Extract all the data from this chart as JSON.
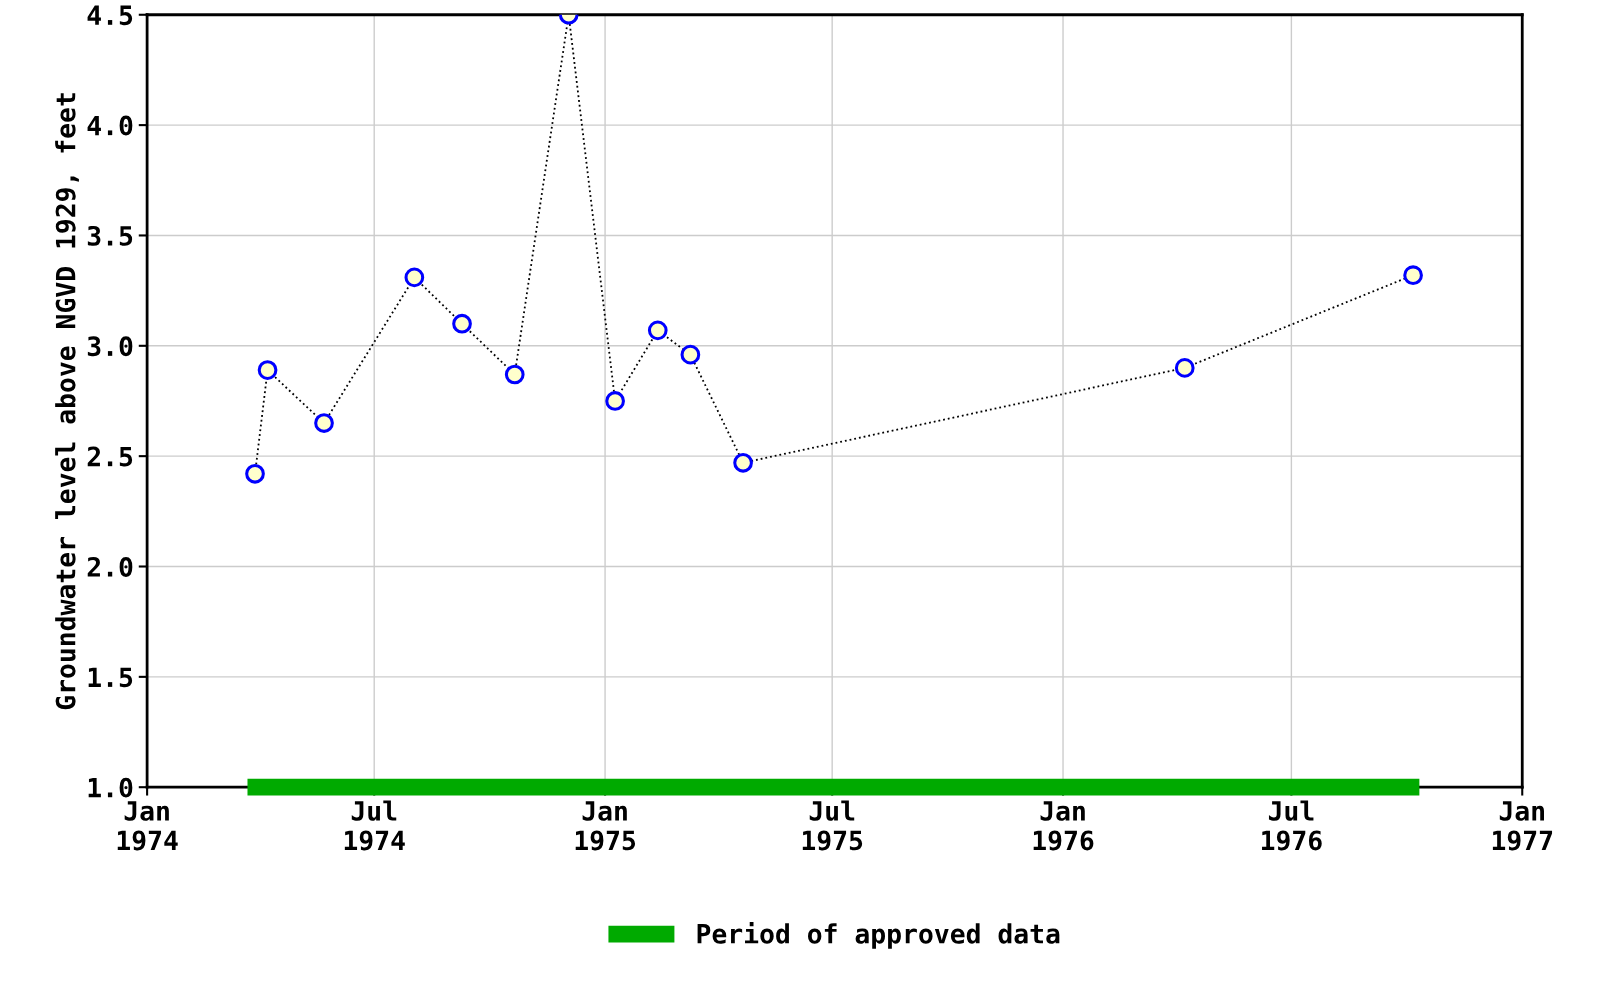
{
  "chart_data": {
    "type": "line",
    "ylabel": "Groundwater level above NGVD 1929, feet",
    "x": [
      "1974-03-28",
      "1974-04-07",
      "1974-05-22",
      "1974-08-02",
      "1974-09-09",
      "1974-10-21",
      "1974-12-03",
      "1975-01-09",
      "1975-02-12",
      "1975-03-10",
      "1975-04-21",
      "1976-04-07",
      "1976-10-06"
    ],
    "series": [
      {
        "color": "#0000ff",
        "values": [
          2.42,
          2.89,
          2.65,
          3.31,
          3.1,
          2.87,
          4.5,
          2.75,
          3.07,
          2.96,
          2.47,
          2.9,
          3.32
        ]
      },
      {
        "name": "Period of approved data",
        "color": "#00aa00",
        "x": [
          "1974-03-22",
          "1976-10-11"
        ],
        "values": [
          1.0,
          1.0
        ],
        "marker": "none",
        "line_style": "solid"
      }
    ],
    "xlim": [
      "1974-01-01",
      "1977-01-01"
    ],
    "xticks": [
      {
        "value": "1974-01-01",
        "label": "Jan\n1974"
      },
      {
        "value": "1974-07-01",
        "label": "Jul\n1974"
      },
      {
        "value": "1975-01-01",
        "label": "Jan\n1975"
      },
      {
        "value": "1975-07-01",
        "label": "Jul\n1975"
      },
      {
        "value": "1976-01-01",
        "label": "Jan\n1976"
      },
      {
        "value": "1976-07-01",
        "label": "Jul\n1976"
      },
      {
        "value": "1977-01-01",
        "label": "Jan\n1977"
      }
    ],
    "ylim": [
      1.0,
      4.5
    ],
    "yticks": [
      {
        "value": 1.0,
        "label": "1.0"
      },
      {
        "value": 1.5,
        "label": "1.5"
      },
      {
        "value": 2.0,
        "label": "2.0"
      },
      {
        "value": 2.5,
        "label": "2.5"
      },
      {
        "value": 3.0,
        "label": "3.0"
      },
      {
        "value": 3.5,
        "label": "3.5"
      },
      {
        "value": 4.0,
        "label": "4.0"
      },
      {
        "value": 4.5,
        "label": "4.5"
      }
    ],
    "grid": true,
    "legend": "bottom",
    "marker": "circle",
    "line_style": "dotted"
  }
}
